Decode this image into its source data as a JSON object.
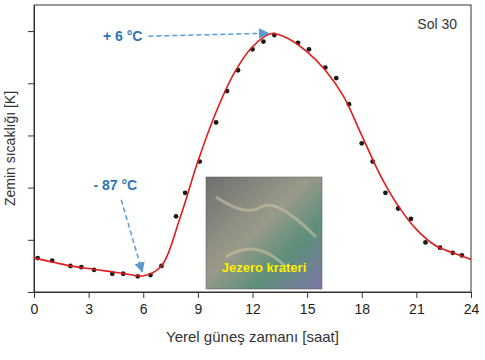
{
  "chart_data": {
    "type": "line",
    "title": "Sol 30",
    "x_label": "Yerel güneş zamanı [saat]",
    "y_label": "Zemin sıcaklığı [K]",
    "xlim": [
      0,
      24
    ],
    "xticks": [
      0,
      3,
      6,
      9,
      12,
      15,
      18,
      21,
      24
    ],
    "ylim": [
      180,
      290
    ],
    "yticks": [
      180,
      200,
      220,
      240,
      260,
      280
    ],
    "tick_labels": "x",
    "grid": false,
    "series": [
      {
        "type": "scatter",
        "color": "#1a1a1a",
        "marker": "circle",
        "x": [
          0.2,
          1,
          2,
          2.6,
          3.3,
          4.3,
          4.9,
          5.7,
          6.4,
          7,
          7.8,
          8.3,
          9.1,
          10,
          10.6,
          11.2,
          12,
          12.6,
          13.2,
          14.5,
          15.1,
          16,
          16.6,
          17.3,
          18,
          18.6,
          19.3,
          20,
          20.7,
          21.5,
          22.3,
          23,
          23.5
        ],
        "values": [
          193,
          192,
          190,
          189.5,
          188.5,
          187,
          187,
          186,
          186.5,
          190,
          209,
          218,
          230,
          245,
          257,
          265,
          273,
          276,
          278.5,
          275.5,
          273,
          266,
          262,
          252,
          237,
          230,
          218,
          212,
          208,
          199,
          197,
          195,
          194
        ]
      },
      {
        "type": "line",
        "color": "#e41a1c",
        "line_style": "solid",
        "x": [
          0,
          1,
          2,
          3,
          4,
          5,
          6,
          7,
          8,
          9,
          10,
          11,
          12,
          13,
          14,
          15,
          16,
          17,
          18,
          19,
          20,
          21,
          22,
          23,
          24
        ],
        "values": [
          193,
          191.5,
          190,
          189,
          188,
          187,
          186.2,
          190,
          208,
          230,
          249,
          264,
          274,
          279,
          277,
          272,
          265,
          255,
          240,
          225,
          213,
          204,
          198,
          195,
          192.5
        ]
      }
    ],
    "annotations": [
      {
        "text": "+ 6 °C",
        "x": 13.2,
        "y": 279.2
      },
      {
        "text": "- 87 °C",
        "x": 6,
        "y": 186.2
      }
    ],
    "inset_label": "Jezero krateri"
  }
}
